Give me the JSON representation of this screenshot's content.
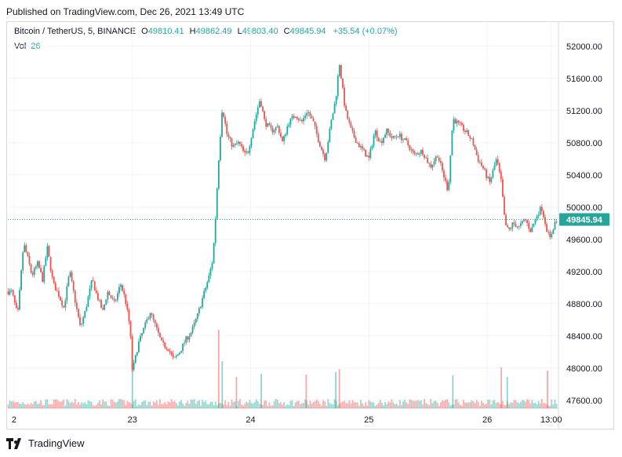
{
  "header": {
    "published": "Published on TradingView.com, Dec 26, 2021 13:49 UTC"
  },
  "legend": {
    "symbol": "Bitcoin / TetherUS, 5, BINANCE",
    "o_label": "O",
    "o_value": "49810.41",
    "h_label": "H",
    "h_value": "49862.49",
    "l_label": "L",
    "l_value": "49803.40",
    "c_label": "C",
    "c_value": "49845.94",
    "change": "+35.54 (+0.07%)",
    "vol_label": "Vol",
    "vol_value": "26"
  },
  "footer": {
    "brand": "TradingView"
  },
  "chart_data": {
    "type": "candlestick",
    "price_scale": "right",
    "ylim": [
      47500,
      52300
    ],
    "y_ticks": [
      "52000.00",
      "51600.00",
      "51200.00",
      "50800.00",
      "50400.00",
      "50000.00",
      "49600.00",
      "49200.00",
      "48800.00",
      "48400.00",
      "48000.00",
      "47600.00"
    ],
    "y_tick_values": [
      52000,
      51600,
      51200,
      50800,
      50400,
      50000,
      49600,
      49200,
      48800,
      48400,
      48000,
      47600
    ],
    "x_ticks": [
      "2",
      "23",
      "24",
      "25",
      "26",
      "13:00"
    ],
    "x_tick_days": [
      22,
      23,
      24,
      25,
      26,
      26.5417
    ],
    "last_price": 49845.94,
    "last_price_label": "49845.94",
    "colors": {
      "up": "#26a69a",
      "down": "#ef5350",
      "grid": "#f0f3fa",
      "axis_text": "#131722",
      "price_line": "#26a69a"
    },
    "grid": true,
    "price_path_points": [
      [
        21.98,
        48950
      ],
      [
        22.03,
        48650
      ],
      [
        22.05,
        49000
      ],
      [
        22.08,
        49550
      ],
      [
        22.11,
        49400
      ],
      [
        22.15,
        49150
      ],
      [
        22.2,
        49300
      ],
      [
        22.24,
        49100
      ],
      [
        22.28,
        49500
      ],
      [
        22.33,
        49050
      ],
      [
        22.38,
        48900
      ],
      [
        22.42,
        48750
      ],
      [
        22.47,
        49200
      ],
      [
        22.52,
        48800
      ],
      [
        22.56,
        48500
      ],
      [
        22.6,
        48700
      ],
      [
        22.66,
        49100
      ],
      [
        22.7,
        48900
      ],
      [
        22.75,
        48700
      ],
      [
        22.79,
        48950
      ],
      [
        22.85,
        48800
      ],
      [
        22.9,
        49050
      ],
      [
        22.94,
        48850
      ],
      [
        22.98,
        48500
      ],
      [
        23.0,
        47950
      ],
      [
        23.05,
        48300
      ],
      [
        23.1,
        48500
      ],
      [
        23.15,
        48700
      ],
      [
        23.2,
        48500
      ],
      [
        23.25,
        48300
      ],
      [
        23.3,
        48250
      ],
      [
        23.35,
        48100
      ],
      [
        23.4,
        48200
      ],
      [
        23.45,
        48350
      ],
      [
        23.5,
        48450
      ],
      [
        23.55,
        48650
      ],
      [
        23.6,
        48900
      ],
      [
        23.65,
        49150
      ],
      [
        23.68,
        49350
      ],
      [
        23.7,
        49800
      ],
      [
        23.73,
        50600
      ],
      [
        23.76,
        51250
      ],
      [
        23.8,
        50900
      ],
      [
        23.85,
        50750
      ],
      [
        23.9,
        50800
      ],
      [
        23.95,
        50650
      ],
      [
        23.98,
        50700
      ],
      [
        24.03,
        51050
      ],
      [
        24.08,
        51350
      ],
      [
        24.12,
        51050
      ],
      [
        24.18,
        50950
      ],
      [
        24.23,
        51000
      ],
      [
        24.27,
        50800
      ],
      [
        24.32,
        51050
      ],
      [
        24.38,
        51150
      ],
      [
        24.43,
        51050
      ],
      [
        24.48,
        51200
      ],
      [
        24.53,
        51050
      ],
      [
        24.58,
        50800
      ],
      [
        24.63,
        50600
      ],
      [
        24.68,
        51050
      ],
      [
        24.72,
        51350
      ],
      [
        24.75,
        51800
      ],
      [
        24.8,
        51200
      ],
      [
        24.85,
        50950
      ],
      [
        24.9,
        50800
      ],
      [
        24.95,
        50700
      ],
      [
        25.0,
        50600
      ],
      [
        25.05,
        50950
      ],
      [
        25.1,
        50800
      ],
      [
        25.15,
        50950
      ],
      [
        25.2,
        50850
      ],
      [
        25.25,
        50900
      ],
      [
        25.32,
        50800
      ],
      [
        25.38,
        50650
      ],
      [
        25.45,
        50700
      ],
      [
        25.52,
        50500
      ],
      [
        25.58,
        50650
      ],
      [
        25.63,
        50400
      ],
      [
        25.67,
        50200
      ],
      [
        25.71,
        51100
      ],
      [
        25.78,
        51000
      ],
      [
        25.84,
        50900
      ],
      [
        25.88,
        50800
      ],
      [
        25.92,
        50600
      ],
      [
        25.96,
        50500
      ],
      [
        26.02,
        50300
      ],
      [
        26.08,
        50600
      ],
      [
        26.12,
        50300
      ],
      [
        26.15,
        49800
      ],
      [
        26.18,
        49700
      ],
      [
        26.22,
        49800
      ],
      [
        26.27,
        49750
      ],
      [
        26.32,
        49850
      ],
      [
        26.37,
        49700
      ],
      [
        26.42,
        49900
      ],
      [
        26.46,
        50000
      ],
      [
        26.5,
        49750
      ],
      [
        26.53,
        49600
      ],
      [
        26.57,
        49800
      ],
      [
        26.6,
        49846
      ]
    ],
    "volume_spikes": [
      {
        "day": 23.0,
        "volume": 950
      },
      {
        "day": 23.73,
        "volume": 1000
      },
      {
        "day": 23.76,
        "volume": 600
      },
      {
        "day": 23.88,
        "volume": 400
      },
      {
        "day": 24.09,
        "volume": 440
      },
      {
        "day": 24.47,
        "volume": 430
      },
      {
        "day": 24.72,
        "volume": 460
      },
      {
        "day": 24.75,
        "volume": 500
      },
      {
        "day": 25.71,
        "volume": 420
      },
      {
        "day": 26.12,
        "volume": 520
      },
      {
        "day": 26.17,
        "volume": 400
      },
      {
        "day": 26.51,
        "volume": 480
      }
    ]
  }
}
